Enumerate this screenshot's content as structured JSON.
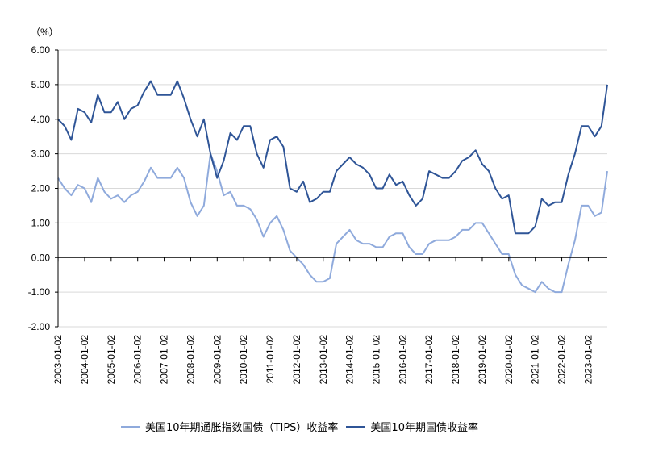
{
  "chart_data": {
    "type": "line",
    "unit_label": "（%）",
    "ylim": [
      -2,
      6
    ],
    "yticks": [
      "6.00",
      "5.00",
      "4.00",
      "3.00",
      "2.00",
      "1.00",
      "0.00",
      "-1.00",
      "-2.00"
    ],
    "ytick_values": [
      6,
      5,
      4,
      3,
      2,
      1,
      0,
      -1,
      -2
    ],
    "xlim": [
      2003.0,
      2023.72
    ],
    "xticks": [
      "2003-01-02",
      "2004-01-02",
      "2005-01-02",
      "2006-01-02",
      "2007-01-02",
      "2008-01-02",
      "2009-01-02",
      "2010-01-02",
      "2011-01-02",
      "2012-01-02",
      "2013-01-02",
      "2014-01-02",
      "2015-01-02",
      "2016-01-02",
      "2017-01-02",
      "2018-01-02",
      "2019-01-02",
      "2020-01-02",
      "2021-01-02",
      "2022-01-02",
      "2023-01-02"
    ],
    "grid": true,
    "legend_position": "bottom",
    "x_start": 2003.0,
    "x_step": 0.25,
    "series": [
      {
        "name": "美国10年期通胀指数国债（TIPS）收益率",
        "color": "#8FAADC",
        "values": [
          2.3,
          2.0,
          1.8,
          2.1,
          2.0,
          1.6,
          2.3,
          1.9,
          1.7,
          1.8,
          1.6,
          1.8,
          1.9,
          2.2,
          2.6,
          2.3,
          2.3,
          2.3,
          2.6,
          2.3,
          1.6,
          1.2,
          1.5,
          3.0,
          2.5,
          1.8,
          1.9,
          1.5,
          1.5,
          1.4,
          1.1,
          0.6,
          1.0,
          1.2,
          0.8,
          0.2,
          0.0,
          -0.2,
          -0.5,
          -0.7,
          -0.7,
          -0.6,
          0.4,
          0.6,
          0.8,
          0.5,
          0.4,
          0.4,
          0.3,
          0.3,
          0.6,
          0.7,
          0.7,
          0.3,
          0.1,
          0.1,
          0.4,
          0.5,
          0.5,
          0.5,
          0.6,
          0.8,
          0.8,
          1.0,
          1.0,
          0.7,
          0.4,
          0.1,
          0.1,
          -0.5,
          -0.8,
          -0.9,
          -1.0,
          -0.7,
          -0.9,
          -1.0,
          -1.0,
          -0.2,
          0.5,
          1.5,
          1.5,
          1.2,
          1.3,
          2.5
        ]
      },
      {
        "name": "美国10年期国债收益率",
        "color": "#2F5597",
        "values": [
          4.0,
          3.8,
          3.4,
          4.3,
          4.2,
          3.9,
          4.7,
          4.2,
          4.2,
          4.5,
          4.0,
          4.3,
          4.4,
          4.8,
          5.1,
          4.7,
          4.7,
          4.7,
          5.1,
          4.6,
          4.0,
          3.5,
          4.0,
          3.0,
          2.3,
          2.8,
          3.6,
          3.4,
          3.8,
          3.8,
          3.0,
          2.6,
          3.4,
          3.5,
          3.2,
          2.0,
          1.9,
          2.2,
          1.6,
          1.7,
          1.9,
          1.9,
          2.5,
          2.7,
          2.9,
          2.7,
          2.6,
          2.4,
          2.0,
          2.0,
          2.4,
          2.1,
          2.2,
          1.8,
          1.5,
          1.7,
          2.5,
          2.4,
          2.3,
          2.3,
          2.5,
          2.8,
          2.9,
          3.1,
          2.7,
          2.5,
          2.0,
          1.7,
          1.8,
          0.7,
          0.7,
          0.7,
          0.9,
          1.7,
          1.5,
          1.6,
          1.6,
          2.4,
          3.0,
          3.8,
          3.8,
          3.5,
          3.8,
          5.0
        ]
      }
    ]
  }
}
